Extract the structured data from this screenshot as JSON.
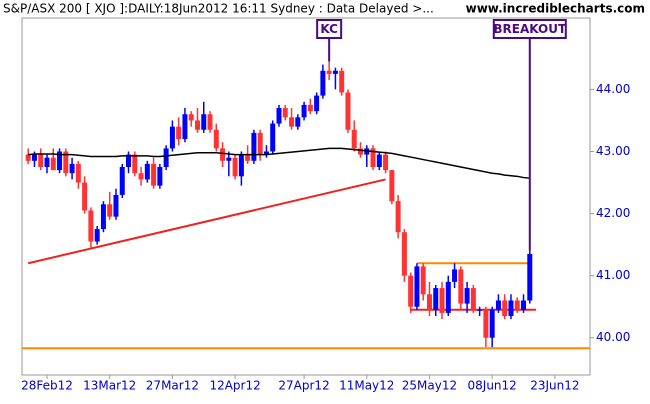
{
  "chart_data": {
    "type": "candlestick",
    "title": "S&P/ASX 200 [ XJO ]:DAILY:18Jun2012 16:11 Sydney : Data Delayed >...",
    "source": "www.incrediblecharts.com",
    "categories": [
      null,
      null,
      null,
      "28Feb12",
      null,
      null,
      null,
      null,
      null,
      null,
      null,
      null,
      null,
      "13Mar12",
      null,
      null,
      null,
      null,
      null,
      null,
      null,
      null,
      null,
      "27Mar12",
      null,
      null,
      null,
      null,
      null,
      null,
      null,
      null,
      null,
      "12Apr12",
      null,
      null,
      null,
      null,
      null,
      null,
      null,
      null,
      null,
      null,
      "27Apr12",
      null,
      null,
      null,
      null,
      null,
      null,
      null,
      null,
      null,
      "11May12",
      null,
      null,
      null,
      null,
      null,
      null,
      null,
      null,
      null,
      "25May12",
      null,
      null,
      null,
      null,
      null,
      null,
      null,
      null,
      null,
      "08Jun12",
      null,
      null,
      null,
      null,
      null,
      null,
      null,
      null,
      null,
      "23Jun12"
    ],
    "open": [
      42.95,
      42.85,
      42.95,
      42.75,
      42.9,
      42.7,
      43.0,
      42.65,
      42.8,
      42.5,
      42.05,
      41.55,
      41.75,
      42.15,
      41.95,
      42.3,
      42.75,
      42.95,
      42.65,
      42.55,
      42.8,
      42.45,
      42.75,
      43.05,
      43.4,
      43.2,
      43.6,
      43.5,
      43.35,
      43.6,
      43.35,
      43.05,
      42.85,
      42.9,
      42.6,
      42.95,
      42.85,
      43.3,
      42.95,
      43.0,
      43.45,
      43.7,
      43.55,
      43.4,
      43.55,
      43.75,
      43.65,
      43.9,
      44.3,
      44.25,
      44.3,
      43.95,
      43.35,
      43.05,
      42.95,
      43.05,
      42.75,
      42.95,
      42.7,
      42.2,
      41.7,
      41.0,
      40.5,
      41.15,
      40.7,
      40.45,
      40.8,
      40.4,
      40.9,
      41.1,
      40.55,
      40.8,
      40.45,
      40.45,
      40.0,
      40.45,
      40.6,
      40.35,
      40.6,
      40.45,
      40.6,
      null,
      null,
      null,
      null
    ],
    "high": [
      43.05,
      43.0,
      43.05,
      42.95,
      43.05,
      43.05,
      43.05,
      42.9,
      42.85,
      42.6,
      42.1,
      41.8,
      42.2,
      42.35,
      42.4,
      42.8,
      43.0,
      43.0,
      42.75,
      42.85,
      42.9,
      42.8,
      43.1,
      43.5,
      43.55,
      43.7,
      43.65,
      43.7,
      43.8,
      43.65,
      43.45,
      43.15,
      43.0,
      42.95,
      43.0,
      43.1,
      43.35,
      43.35,
      43.1,
      43.5,
      43.75,
      43.75,
      43.7,
      43.6,
      43.8,
      43.85,
      43.95,
      44.4,
      44.45,
      44.35,
      44.35,
      44.0,
      43.5,
      43.15,
      43.1,
      43.1,
      43.0,
      43.0,
      42.7,
      42.3,
      41.75,
      41.05,
      41.2,
      41.2,
      40.9,
      40.85,
      40.9,
      41.0,
      41.2,
      41.15,
      40.9,
      40.85,
      40.5,
      40.5,
      40.5,
      40.7,
      40.7,
      40.7,
      40.65,
      40.7,
      41.4,
      null,
      null,
      null,
      null
    ],
    "low": [
      42.8,
      42.75,
      42.7,
      42.65,
      42.75,
      42.65,
      42.6,
      42.55,
      42.4,
      42.0,
      41.45,
      41.5,
      41.7,
      41.9,
      41.9,
      42.25,
      42.65,
      42.6,
      42.45,
      42.5,
      42.4,
      42.4,
      42.7,
      43.0,
      43.1,
      43.15,
      43.4,
      43.3,
      43.3,
      43.3,
      43.0,
      42.75,
      42.6,
      42.55,
      42.45,
      42.8,
      42.8,
      42.85,
      42.9,
      42.95,
      43.4,
      43.5,
      43.35,
      43.35,
      43.5,
      43.6,
      43.6,
      43.85,
      44.15,
      44.0,
      43.9,
      43.3,
      43.0,
      42.9,
      42.75,
      42.7,
      42.7,
      42.65,
      42.15,
      41.6,
      40.9,
      40.4,
      40.45,
      40.6,
      40.35,
      40.35,
      40.3,
      40.35,
      40.8,
      40.45,
      40.4,
      40.4,
      40.35,
      39.85,
      39.85,
      40.4,
      40.3,
      40.3,
      40.4,
      40.4,
      40.55,
      null,
      null,
      null,
      null
    ],
    "close": [
      42.85,
      42.95,
      42.75,
      42.9,
      42.7,
      43.0,
      42.65,
      42.8,
      42.5,
      42.05,
      41.55,
      41.75,
      42.15,
      41.95,
      42.3,
      42.75,
      42.95,
      42.65,
      42.55,
      42.8,
      42.45,
      42.75,
      43.05,
      43.4,
      43.2,
      43.6,
      43.5,
      43.35,
      43.6,
      43.35,
      43.05,
      42.85,
      42.9,
      42.6,
      42.95,
      42.85,
      43.3,
      42.95,
      43.0,
      43.45,
      43.7,
      43.55,
      43.4,
      43.55,
      43.75,
      43.65,
      43.9,
      44.3,
      44.25,
      44.3,
      43.95,
      43.35,
      43.05,
      42.95,
      43.05,
      42.75,
      42.95,
      42.7,
      42.2,
      41.7,
      41.0,
      40.5,
      41.15,
      40.7,
      40.45,
      40.8,
      40.4,
      40.9,
      41.1,
      40.55,
      40.8,
      40.45,
      40.45,
      40.0,
      40.45,
      40.6,
      40.35,
      40.6,
      40.45,
      40.6,
      41.35,
      null,
      null,
      null,
      null
    ],
    "moving_average": [
      42.95,
      42.96,
      42.96,
      42.96,
      42.96,
      42.95,
      42.95,
      42.95,
      42.94,
      42.93,
      42.92,
      42.92,
      42.92,
      42.92,
      42.92,
      42.93,
      42.93,
      42.93,
      42.93,
      42.93,
      42.92,
      42.92,
      42.93,
      42.94,
      42.95,
      42.96,
      42.97,
      42.98,
      42.98,
      42.98,
      42.98,
      42.97,
      42.96,
      42.95,
      42.95,
      42.95,
      42.95,
      42.95,
      42.95,
      42.96,
      42.97,
      42.98,
      42.99,
      43.0,
      43.01,
      43.02,
      43.03,
      43.04,
      43.05,
      43.05,
      43.05,
      43.04,
      43.03,
      43.02,
      43.01,
      43.0,
      42.99,
      42.98,
      42.97,
      42.95,
      42.93,
      42.91,
      42.89,
      42.87,
      42.85,
      42.83,
      42.81,
      42.79,
      42.77,
      42.75,
      42.73,
      42.71,
      42.69,
      42.67,
      42.65,
      42.64,
      42.62,
      42.61,
      42.6,
      42.58,
      42.57,
      null,
      null,
      null,
      null
    ],
    "up_color": "#0000ff",
    "down_color": "#ff3333",
    "ma_color": "#000000",
    "ylim": [
      39.4,
      45.15
    ],
    "yticks": [
      {
        "value": 40,
        "label": "40.00"
      },
      {
        "value": 41,
        "label": "41.00"
      },
      {
        "value": 42,
        "label": "42.00"
      },
      {
        "value": 43,
        "label": "43.00"
      },
      {
        "value": 44,
        "label": "44.00"
      }
    ],
    "hlines": [
      {
        "y": 39.83,
        "color": "#ff8800"
      }
    ],
    "trend_lines": [
      {
        "color": "#ee2222",
        "x": [
          0,
          57
        ],
        "y": [
          41.2,
          42.55
        ]
      },
      {
        "color": "#ff8800",
        "x": [
          62,
          80
        ],
        "y": [
          41.2,
          41.2
        ]
      },
      {
        "color": "#ee2222",
        "x": [
          61,
          81
        ],
        "y": [
          40.45,
          40.45
        ]
      }
    ],
    "annotations": [
      {
        "text": "KC",
        "x": 48
      },
      {
        "text": "BREAKOUT",
        "x": 80
      }
    ],
    "annotation_color": "#4b0a82"
  }
}
